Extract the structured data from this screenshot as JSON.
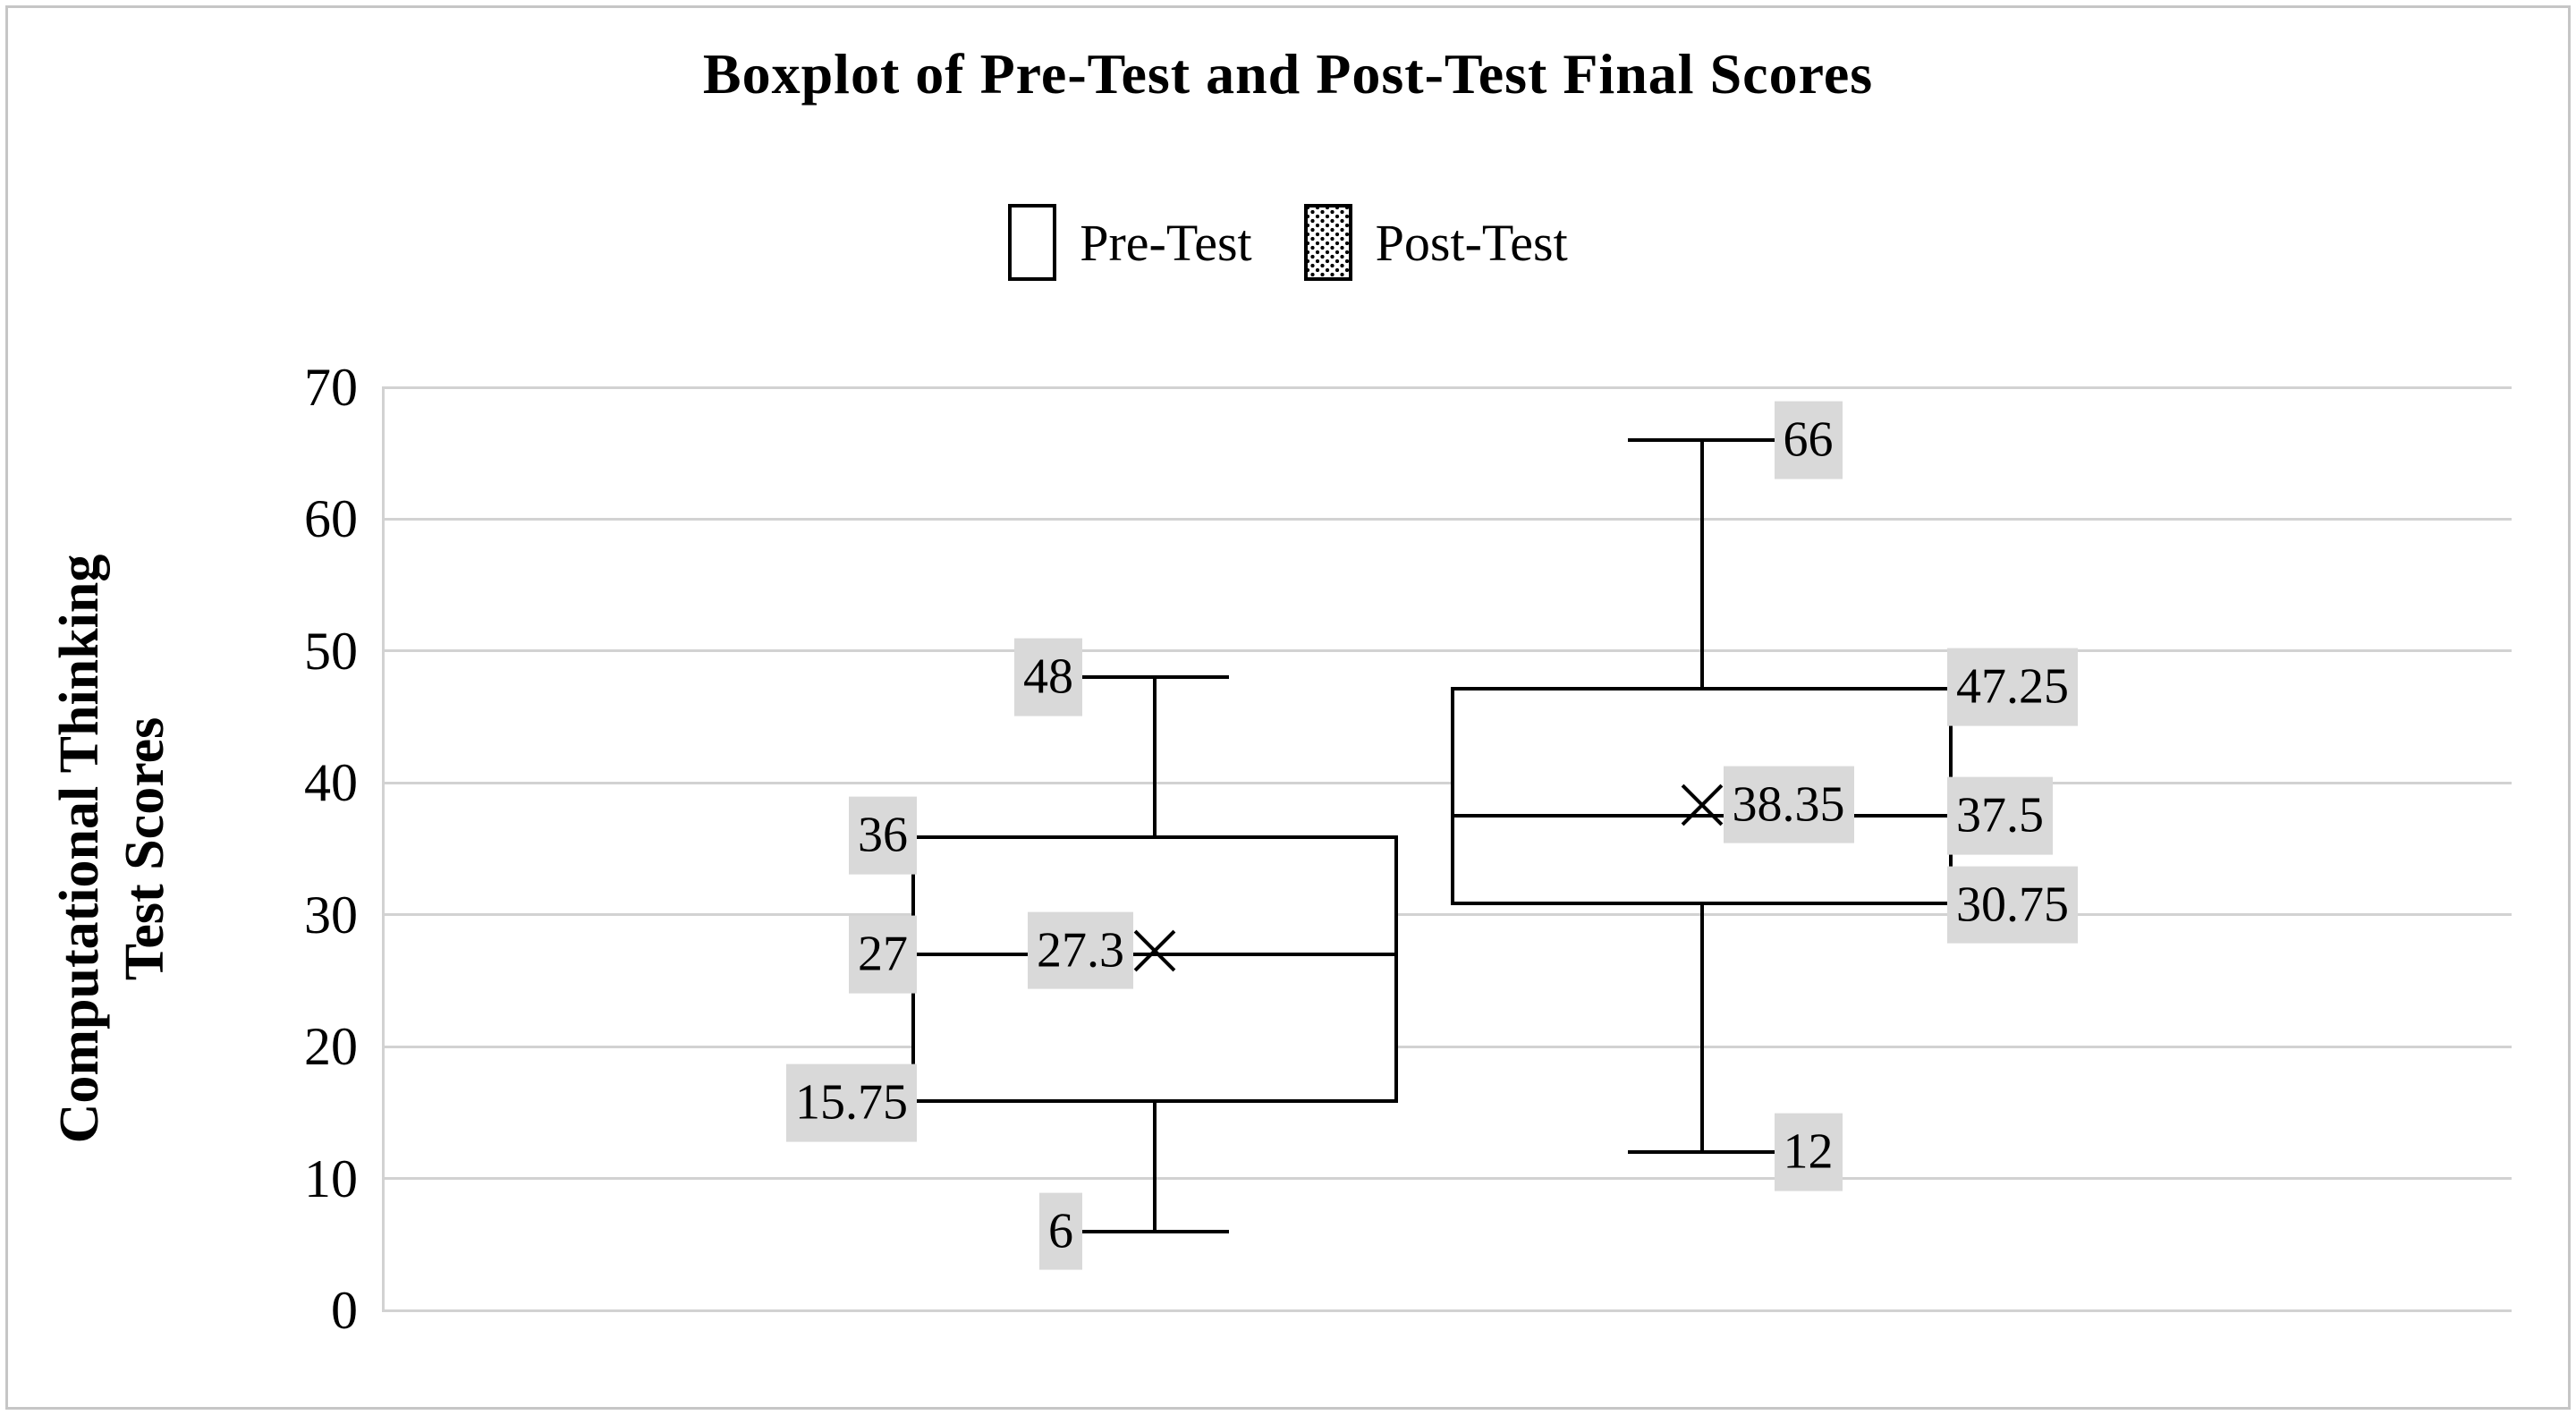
{
  "title": "Boxplot of Pre-Test and Post-Test Final Scores",
  "legend": {
    "items": [
      {
        "label": "Pre-Test",
        "fill": "white"
      },
      {
        "label": "Post-Test",
        "fill": "dotted"
      }
    ]
  },
  "y_axis": {
    "title_line1": "Computational Thinking",
    "title_line2": "Test Scores",
    "ticks": [
      {
        "v": 70,
        "label": "70"
      },
      {
        "v": 60,
        "label": "60"
      },
      {
        "v": 50,
        "label": "50"
      },
      {
        "v": 40,
        "label": "40"
      },
      {
        "v": 30,
        "label": "30"
      },
      {
        "v": 20,
        "label": "20"
      },
      {
        "v": 10,
        "label": "10"
      },
      {
        "v": 0,
        "label": "0"
      }
    ]
  },
  "chart_data": {
    "type": "boxplot",
    "title": "Boxplot of Pre-Test and Post-Test Final Scores",
    "xlabel": "",
    "ylabel": "Computational Thinking Test Scores",
    "ylim": [
      0,
      70
    ],
    "y_ticks": [
      0,
      10,
      20,
      30,
      40,
      50,
      60,
      70
    ],
    "grid": true,
    "legend_position": "top-center",
    "series": [
      {
        "name": "Pre-Test",
        "min": 6,
        "q1": 15.75,
        "median": 27,
        "mean": 27.3,
        "q3": 36,
        "max": 48,
        "fill": "white",
        "labels": {
          "min": "6",
          "q1": "15.75",
          "median": "27",
          "mean": "27.3",
          "q3": "36",
          "max": "48"
        },
        "labels_position": "left"
      },
      {
        "name": "Post-Test",
        "min": 12,
        "q1": 30.75,
        "median": 37.5,
        "mean": 38.35,
        "q3": 47.25,
        "max": 66,
        "fill": "dotted",
        "labels": {
          "min": "12",
          "q1": "30.75",
          "median": "37.5",
          "mean": "38.35",
          "q3": "47.25",
          "max": "66"
        },
        "labels_position": "right"
      }
    ],
    "colors": {
      "box_border": "#000000",
      "median_line": "#000000",
      "mean_marker": "#000000",
      "gridline": "#d2d2d2",
      "label_background": "#d9d9d9",
      "text": "#000000",
      "frame_border": "#c6c6c6"
    }
  }
}
